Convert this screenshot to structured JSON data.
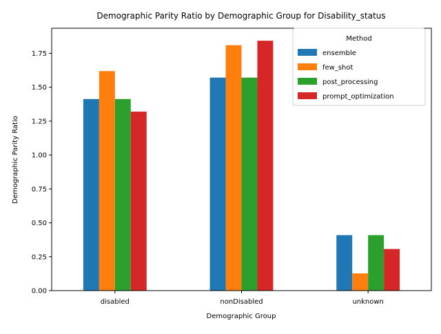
{
  "chart_data": {
    "type": "bar",
    "title": "Demographic Parity Ratio by Demographic Group for Disability_status",
    "xlabel": "Demographic Group",
    "ylabel": "Demographic Parity Ratio",
    "categories": [
      "disabled",
      "nonDisabled",
      "unknown"
    ],
    "ylim": [
      0,
      1.935
    ],
    "yticks": [
      "0.00",
      "0.25",
      "0.50",
      "0.75",
      "1.00",
      "1.25",
      "1.50",
      "1.75"
    ],
    "legend": {
      "title": "Method",
      "placement": "top-right"
    },
    "series": [
      {
        "name": "ensemble",
        "color": "#1f77b4",
        "values": [
          1.413,
          1.571,
          0.409
        ]
      },
      {
        "name": "few_shot",
        "color": "#ff7f0e",
        "values": [
          1.619,
          1.81,
          0.127
        ]
      },
      {
        "name": "post_processing",
        "color": "#2ca02c",
        "values": [
          1.413,
          1.571,
          0.409
        ]
      },
      {
        "name": "prompt_optimization",
        "color": "#d62728",
        "values": [
          1.32,
          1.843,
          0.307
        ]
      }
    ]
  }
}
